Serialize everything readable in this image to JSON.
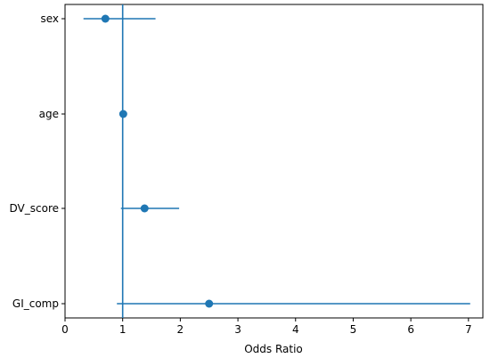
{
  "chart_data": {
    "type": "scatter",
    "subtype": "forest-plot",
    "title": "",
    "xlabel": "Odds Ratio",
    "ylabel": "",
    "xlim": [
      0,
      7.25
    ],
    "xticks": [
      0,
      1,
      2,
      3,
      4,
      5,
      6,
      7
    ],
    "reference_line_x": 1,
    "grid": false,
    "legend": "none",
    "color": "#1f77b4",
    "categories": [
      "sex",
      "age",
      "DV_score",
      "GI_comp"
    ],
    "points": [
      {
        "label": "sex",
        "odds_ratio": 0.7,
        "ci_low": 0.32,
        "ci_high": 1.57
      },
      {
        "label": "age",
        "odds_ratio": 1.01,
        "ci_low": 1.0,
        "ci_high": 1.02
      },
      {
        "label": "DV_score",
        "odds_ratio": 1.38,
        "ci_low": 0.97,
        "ci_high": 1.98
      },
      {
        "label": "GI_comp",
        "odds_ratio": 2.5,
        "ci_low": 0.9,
        "ci_high": 7.03
      }
    ]
  }
}
